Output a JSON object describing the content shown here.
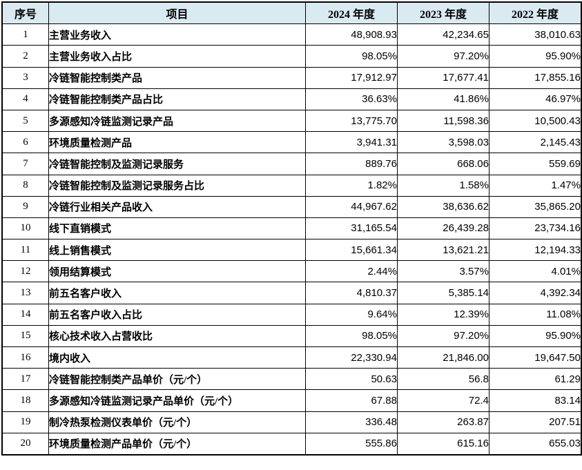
{
  "colors": {
    "header_bg": "#daeaf1",
    "border": "#000000",
    "text": "#000000",
    "row_bg": "#ffffff"
  },
  "table": {
    "columns": [
      {
        "key": "index",
        "label": "序号"
      },
      {
        "key": "item",
        "label": "项目"
      },
      {
        "key": "y2024",
        "label": "2024 年度"
      },
      {
        "key": "y2023",
        "label": "2023 年度"
      },
      {
        "key": "y2022",
        "label": "2022 年度"
      }
    ],
    "rows": [
      {
        "index": "1",
        "item": "主营业务收入",
        "y2024": "48,908.93",
        "y2023": "42,234.65",
        "y2022": "38,010.63"
      },
      {
        "index": "2",
        "item": "主营业务收入占比",
        "y2024": "98.05%",
        "y2023": "97.20%",
        "y2022": "95.90%"
      },
      {
        "index": "3",
        "item": "冷链智能控制类产品",
        "y2024": "17,912.97",
        "y2023": "17,677.41",
        "y2022": "17,855.16"
      },
      {
        "index": "4",
        "item": "冷链智能控制类产品占比",
        "y2024": "36.63%",
        "y2023": "41.86%",
        "y2022": "46.97%"
      },
      {
        "index": "5",
        "item": "多源感知冷链监测记录产品",
        "y2024": "13,775.70",
        "y2023": "11,598.36",
        "y2022": "10,500.43"
      },
      {
        "index": "6",
        "item": "环境质量检测产品",
        "y2024": "3,941.31",
        "y2023": "3,598.03",
        "y2022": "2,145.43"
      },
      {
        "index": "7",
        "item": "冷链智能控制及监测记录服务",
        "y2024": "889.76",
        "y2023": "668.06",
        "y2022": "559.69"
      },
      {
        "index": "8",
        "item": "冷链智能控制及监测记录服务占比",
        "y2024": "1.82%",
        "y2023": "1.58%",
        "y2022": "1.47%"
      },
      {
        "index": "9",
        "item": "冷链行业相关产品收入",
        "y2024": "44,967.62",
        "y2023": "38,636.62",
        "y2022": "35,865.20"
      },
      {
        "index": "10",
        "item": "线下直销模式",
        "y2024": "31,165.54",
        "y2023": "26,439.28",
        "y2022": "23,734.16"
      },
      {
        "index": "11",
        "item": "线上销售模式",
        "y2024": "15,661.34",
        "y2023": "13,621.21",
        "y2022": "12,194.33"
      },
      {
        "index": "12",
        "item": "领用结算模式",
        "y2024": "2.44%",
        "y2023": "3.57%",
        "y2022": "4.01%"
      },
      {
        "index": "13",
        "item": "前五名客户收入",
        "y2024": "4,810.37",
        "y2023": "5,385.14",
        "y2022": "4,392.34"
      },
      {
        "index": "14",
        "item": "前五名客户收入占比",
        "y2024": "9.64%",
        "y2023": "12.39%",
        "y2022": "11.08%"
      },
      {
        "index": "15",
        "item": "核心技术收入占营收比",
        "y2024": "98.05%",
        "y2023": "97.20%",
        "y2022": "95.90%"
      },
      {
        "index": "16",
        "item": "境内收入",
        "y2024": "22,330.94",
        "y2023": "21,846.00",
        "y2022": "19,647.50"
      },
      {
        "index": "17",
        "item": "冷链智能控制类产品单价（元/个）",
        "y2024": "50.63",
        "y2023": "56.8",
        "y2022": "61.29"
      },
      {
        "index": "18",
        "item": "多源感知冷链监测记录产品单价（元/个）",
        "y2024": "67.88",
        "y2023": "72.4",
        "y2022": "83.14"
      },
      {
        "index": "19",
        "item": "制冷热泵检测仪表单价（元/个）",
        "y2024": "336.48",
        "y2023": "263.87",
        "y2022": "207.51"
      },
      {
        "index": "20",
        "item": "环境质量检测产品单价（元/个）",
        "y2024": "555.86",
        "y2023": "615.16",
        "y2022": "655.03"
      }
    ]
  }
}
